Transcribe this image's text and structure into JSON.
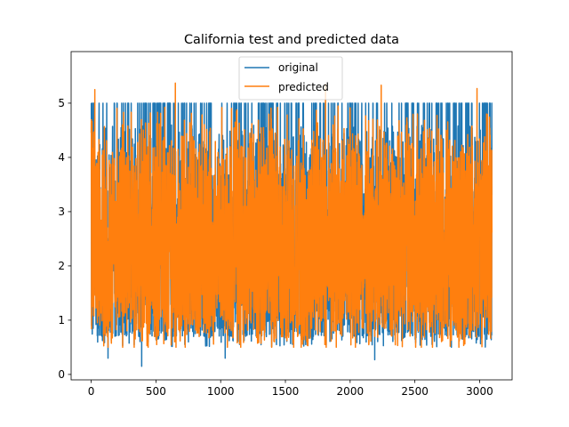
{
  "chart_data": {
    "type": "line",
    "title": "California test and predicted data",
    "xlabel": "",
    "ylabel": "",
    "xlim": [
      -155,
      3251
    ],
    "ylim": [
      -0.1,
      5.95
    ],
    "x_ticks": [
      0,
      500,
      1000,
      1500,
      2000,
      2500,
      3000
    ],
    "y_ticks": [
      0,
      1,
      2,
      3,
      4,
      5
    ],
    "n_points": 3096,
    "grid": false,
    "legend_position": "upper center",
    "series": [
      {
        "name": "original",
        "color": "#1f77b4",
        "description": "test targets, mostly between 0.5 and 5.0, clipped at 5.00001",
        "range": [
          0.15,
          5.0
        ],
        "notable_lows": [
          {
            "x": 130,
            "y": 0.3
          },
          {
            "x": 390,
            "y": 0.15
          },
          {
            "x": 1035,
            "y": 0.3
          },
          {
            "x": 2190,
            "y": 0.27
          }
        ]
      },
      {
        "name": "predicted",
        "color": "#ff7f0e",
        "description": "model predictions, mostly between 0.5 and 5.3",
        "range": [
          0.3,
          5.37
        ],
        "notable_highs": [
          {
            "x": 28,
            "y": 5.25
          },
          {
            "x": 650,
            "y": 5.37
          },
          {
            "x": 1810,
            "y": 5.35
          },
          {
            "x": 2240,
            "y": 5.33
          },
          {
            "x": 2980,
            "y": 5.27
          }
        ]
      }
    ]
  },
  "legend": {
    "items": [
      {
        "label": "original",
        "color": "#1f77b4"
      },
      {
        "label": "predicted",
        "color": "#ff7f0e"
      }
    ]
  }
}
